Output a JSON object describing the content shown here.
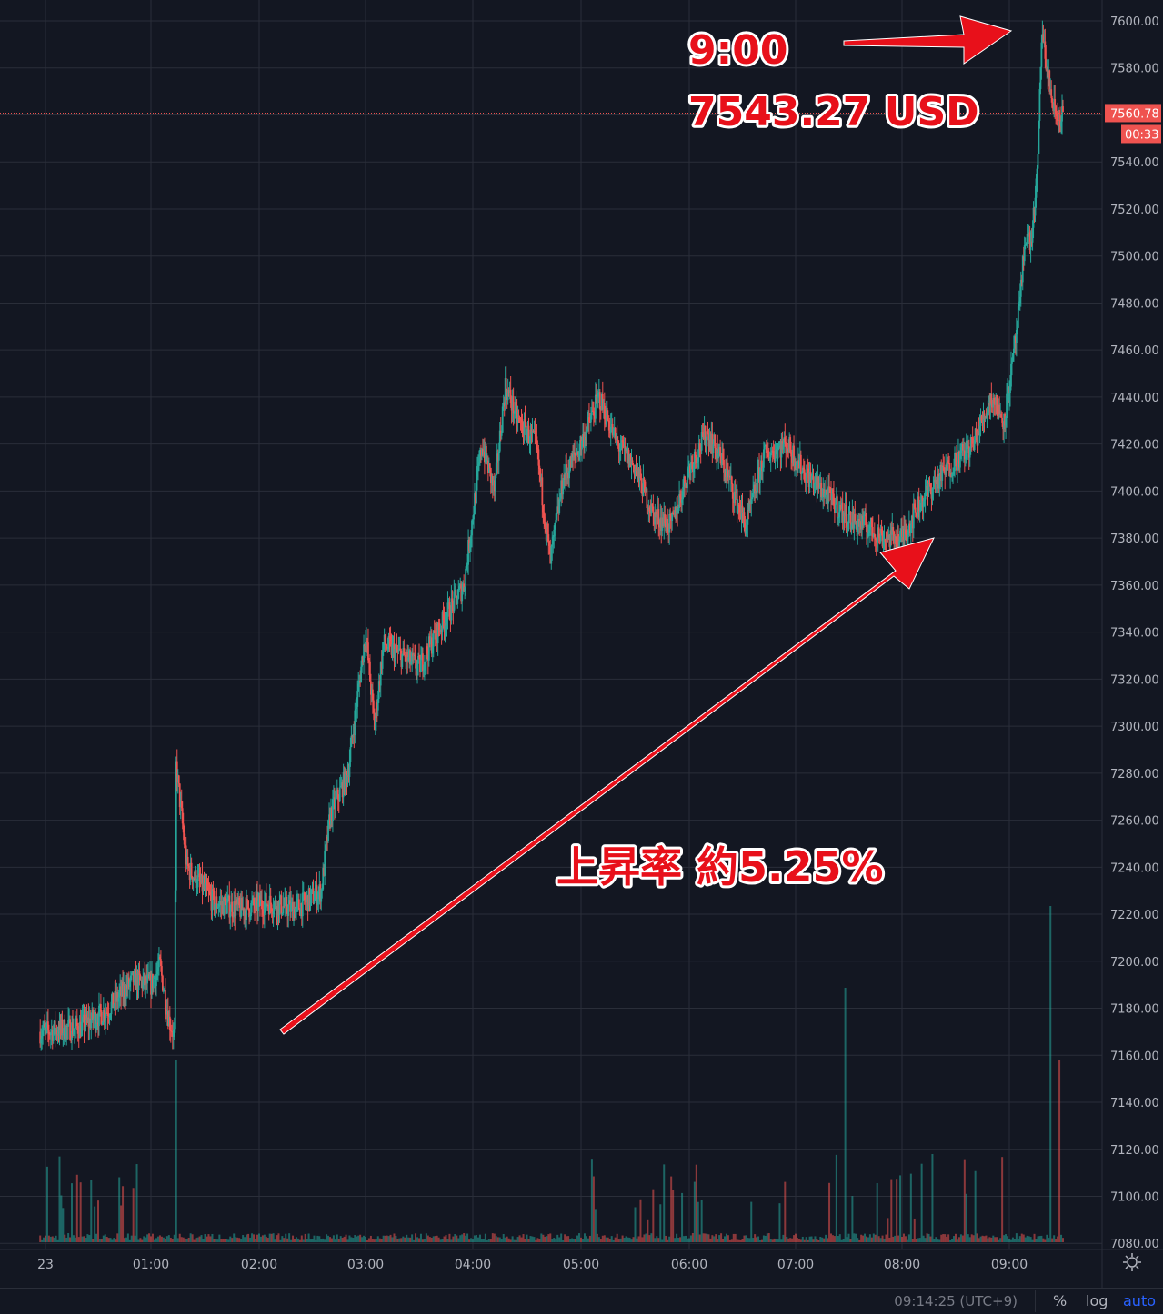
{
  "chart_data": {
    "type": "candlestick",
    "title": "",
    "xlabel": "",
    "ylabel": "",
    "x_ticks": [
      "23",
      "01:00",
      "02:00",
      "03:00",
      "04:00",
      "05:00",
      "06:00",
      "07:00",
      "08:00",
      "09:00"
    ],
    "y_ticks": [
      "7600.00",
      "7580.00",
      "7560.00",
      "7540.00",
      "7520.00",
      "7500.00",
      "7480.00",
      "7460.00",
      "7440.00",
      "7420.00",
      "7400.00",
      "7380.00",
      "7360.00",
      "7340.00",
      "7320.00",
      "7300.00",
      "7280.00",
      "7260.00",
      "7240.00",
      "7220.00",
      "7200.00",
      "7180.00",
      "7160.00",
      "7140.00",
      "7120.00",
      "7100.00",
      "7080.00"
    ],
    "ylim": [
      7076,
      7602
    ],
    "price_path": [
      [
        "23",
        7170
      ],
      [
        "23:20",
        7172
      ],
      [
        "23:35",
        7179
      ],
      [
        "23:50",
        7192
      ],
      [
        "00:00",
        7190
      ],
      [
        "00:05",
        7198
      ],
      [
        "00:10",
        7175
      ],
      [
        "00:13",
        7168
      ],
      [
        "00:14",
        7283
      ],
      [
        "00:20",
        7240
      ],
      [
        "00:35",
        7225
      ],
      [
        "00:50",
        7222
      ],
      [
        "01:05",
        7225
      ],
      [
        "01:20",
        7222
      ],
      [
        "01:35",
        7230
      ],
      [
        "01:40",
        7262
      ],
      [
        "01:50",
        7280
      ],
      [
        "02:00",
        7340
      ],
      [
        "02:05",
        7300
      ],
      [
        "02:10",
        7335
      ],
      [
        "02:20",
        7330
      ],
      [
        "02:30",
        7325
      ],
      [
        "02:40",
        7340
      ],
      [
        "02:55",
        7360
      ],
      [
        "03:05",
        7420
      ],
      [
        "03:12",
        7400
      ],
      [
        "03:18",
        7445
      ],
      [
        "03:25",
        7430
      ],
      [
        "03:35",
        7420
      ],
      [
        "03:43",
        7370
      ],
      [
        "03:50",
        7405
      ],
      [
        "04:00",
        7420
      ],
      [
        "04:10",
        7440
      ],
      [
        "04:20",
        7420
      ],
      [
        "04:30",
        7410
      ],
      [
        "04:40",
        7390
      ],
      [
        "04:50",
        7385
      ],
      [
        "05:00",
        7410
      ],
      [
        "05:10",
        7425
      ],
      [
        "05:20",
        7410
      ],
      [
        "05:32",
        7385
      ],
      [
        "05:42",
        7415
      ],
      [
        "05:55",
        7420
      ],
      [
        "06:05",
        7408
      ],
      [
        "06:18",
        7398
      ],
      [
        "06:30",
        7388
      ],
      [
        "06:40",
        7385
      ],
      [
        "06:50",
        7380
      ],
      [
        "07:00",
        7380
      ],
      [
        "07:10",
        7395
      ],
      [
        "07:20",
        7405
      ],
      [
        "07:30",
        7413
      ],
      [
        "07:40",
        7420
      ],
      [
        "07:50",
        7440
      ],
      [
        "07:57",
        7430
      ],
      [
        "08:02",
        7455
      ],
      [
        "08:06",
        7480
      ],
      [
        "08:09",
        7510
      ],
      [
        "08:12",
        7505
      ],
      [
        "08:14",
        7520
      ],
      [
        "08:16",
        7540
      ],
      [
        "08:18",
        7595
      ],
      [
        "08:21",
        7580
      ],
      [
        "08:24",
        7565
      ],
      [
        "08:27",
        7558
      ],
      [
        "08:30",
        7561
      ]
    ],
    "last_price": "7560.78",
    "countdown": "00:33",
    "has_volume_bars": true,
    "volume_spikes": [
      [
        "00:14",
        "tall"
      ],
      [
        "06:28",
        "tall-red"
      ],
      [
        "08:23",
        "tallest"
      ],
      [
        "08:28",
        "tall"
      ]
    ],
    "grid": true,
    "legend": "none",
    "colors": {
      "up": "#26a69a",
      "down": "#ef5350",
      "background": "#131722",
      "grid": "#2a2e39",
      "annotation": "#e8101a"
    },
    "annotations": [
      {
        "id": "peak",
        "lines": [
          "9:00",
          "7543.27 USD"
        ]
      },
      {
        "id": "rise",
        "text": "上昇率 約5.25%"
      }
    ]
  },
  "status": {
    "time": "09:14:25 (UTC+9)",
    "percent_label": "%",
    "log_label": "log",
    "auto_label": "auto"
  },
  "icons": {
    "settings": "gear-icon"
  }
}
